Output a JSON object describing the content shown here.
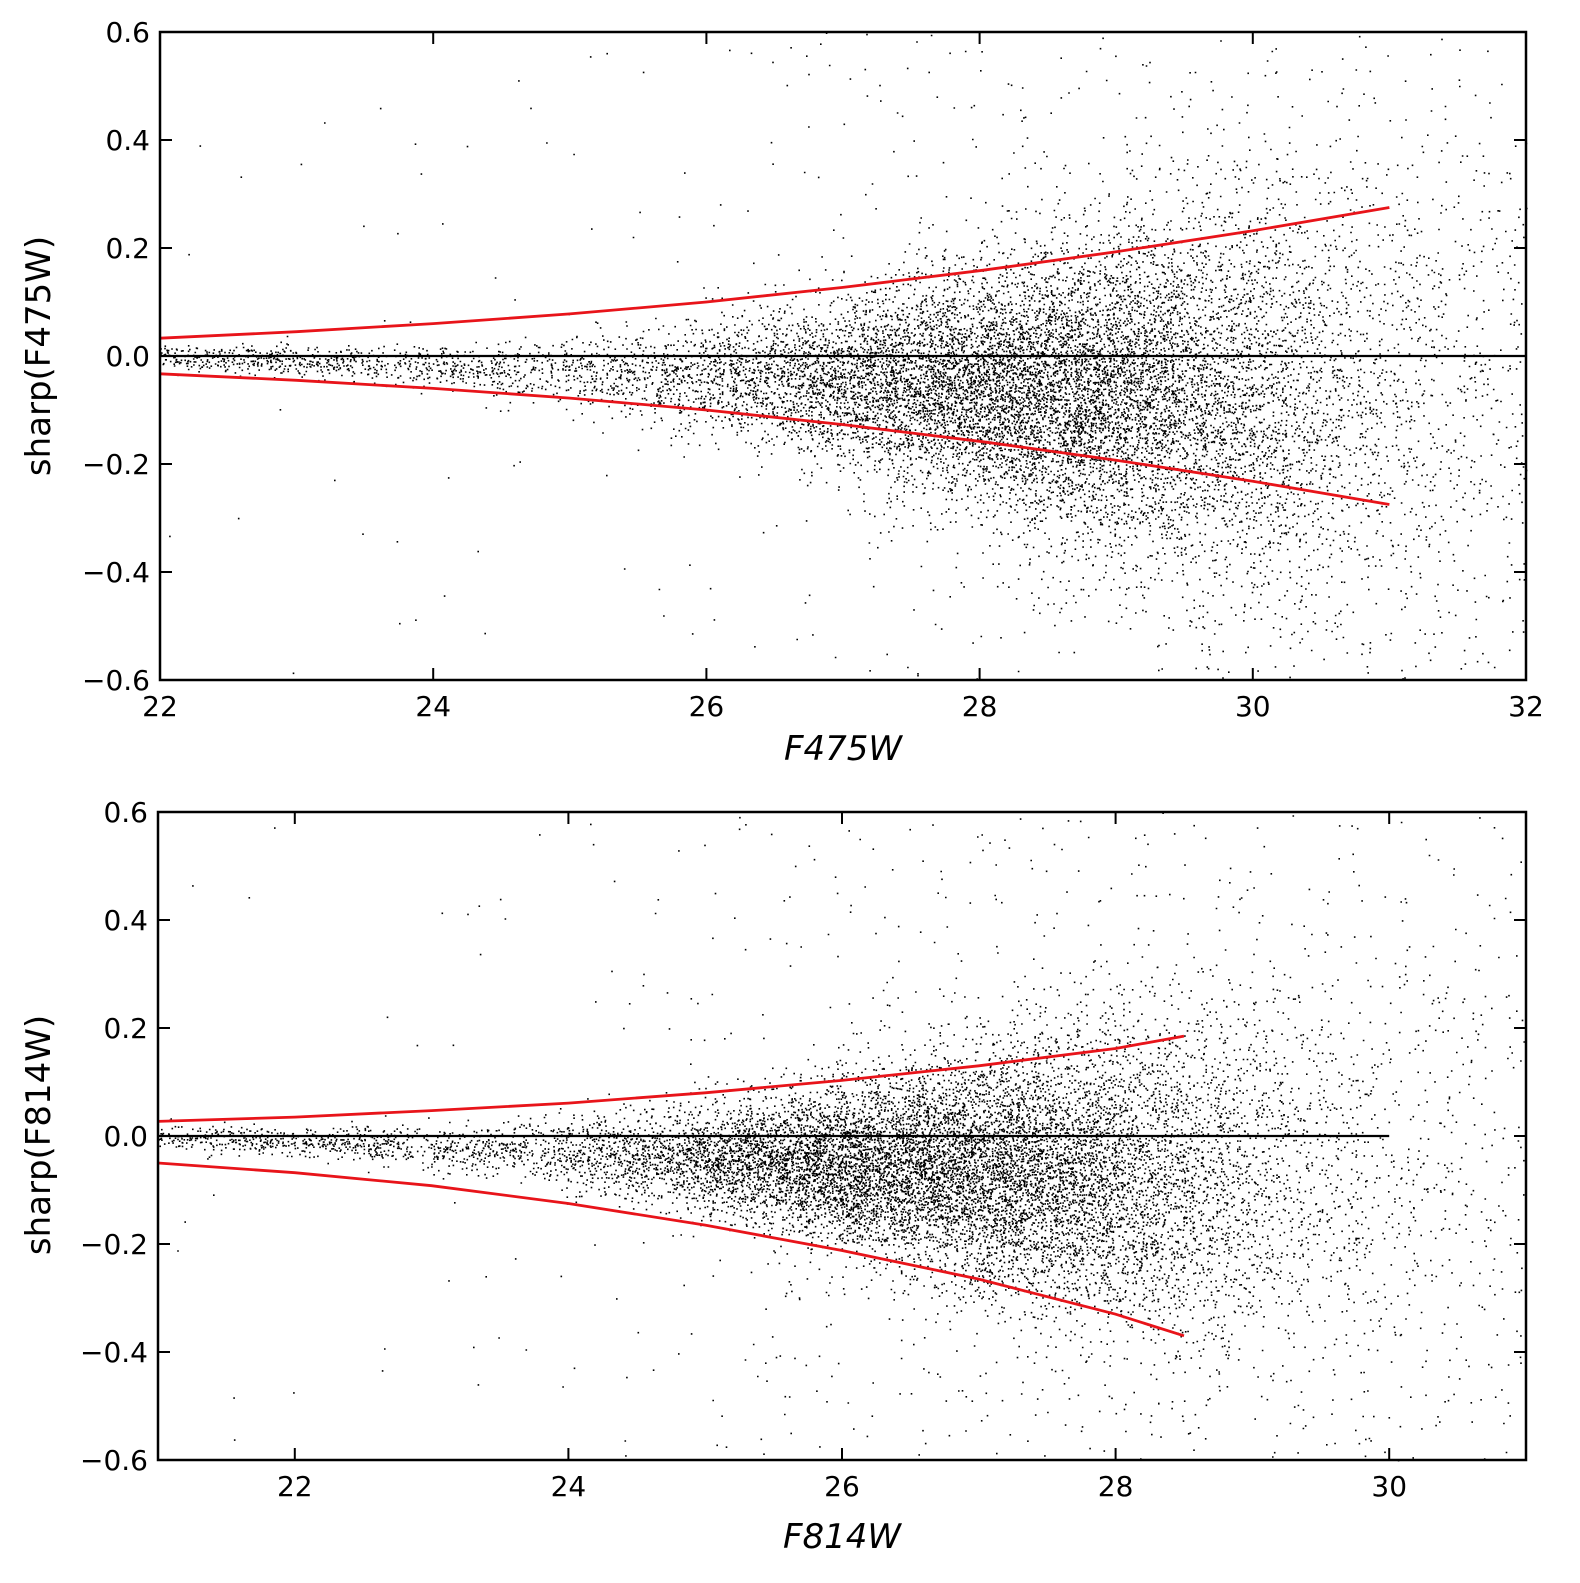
{
  "chart_data": [
    {
      "type": "scatter",
      "panel": "top",
      "xlabel": "F475W",
      "ylabel": "sharp(F475W)",
      "xlim": [
        22,
        32
      ],
      "ylim": [
        -0.6,
        0.6
      ],
      "xticks": [
        22,
        24,
        26,
        28,
        30,
        32
      ],
      "yticks": [
        -0.6,
        -0.4,
        -0.2,
        0.0,
        0.2,
        0.4,
        0.6
      ],
      "xtick_labels": [
        "22",
        "24",
        "26",
        "28",
        "30",
        "32"
      ],
      "ytick_labels": [
        "−0.6",
        "−0.4",
        "−0.2",
        "0.0",
        "0.2",
        "0.4",
        "0.6"
      ],
      "grid": false,
      "colors": {
        "points": "#000000",
        "envelope": "#e8141a",
        "zero_line": "#000000"
      },
      "zero_line": {
        "x": [
          22,
          32
        ],
        "y": 0.0
      },
      "distribution": {
        "center_mag": 28.6,
        "center_sharp": -0.07,
        "bright_limit": 22,
        "faint_limit": 32
      },
      "series": [
        {
          "name": "",
          "role": "upper_envelope",
          "x": [
            22,
            23,
            24,
            25,
            26,
            27,
            28,
            29,
            30,
            31
          ],
          "y": [
            0.033,
            0.045,
            0.06,
            0.078,
            0.1,
            0.127,
            0.158,
            0.193,
            0.232,
            0.275
          ]
        },
        {
          "name": "",
          "role": "lower_envelope",
          "x": [
            22,
            23,
            24,
            25,
            26,
            27,
            28,
            29,
            30,
            31
          ],
          "y": [
            -0.033,
            -0.045,
            -0.06,
            -0.078,
            -0.1,
            -0.127,
            -0.158,
            -0.193,
            -0.232,
            -0.275
          ]
        }
      ]
    },
    {
      "type": "scatter",
      "panel": "bottom",
      "xlabel": "F814W",
      "ylabel": "sharp(F814W)",
      "xlim": [
        21,
        31
      ],
      "ylim": [
        -0.6,
        0.6
      ],
      "xticks": [
        22,
        24,
        26,
        28,
        30
      ],
      "yticks": [
        -0.6,
        -0.4,
        -0.2,
        0.0,
        0.2,
        0.4,
        0.6
      ],
      "xtick_labels": [
        "22",
        "24",
        "26",
        "28",
        "30"
      ],
      "ytick_labels": [
        "−0.6",
        "−0.4",
        "−0.2",
        "0.0",
        "0.2",
        "0.4",
        "0.6"
      ],
      "grid": false,
      "colors": {
        "points": "#000000",
        "envelope": "#e8141a",
        "zero_line": "#000000"
      },
      "zero_line": {
        "x": [
          21,
          30
        ],
        "y": 0.0
      },
      "distribution": {
        "center_mag": 26.9,
        "center_sharp": -0.08,
        "bright_limit": 21,
        "faint_limit": 31
      },
      "series": [
        {
          "name": "",
          "role": "upper_envelope",
          "x": [
            21,
            22,
            23,
            24,
            25,
            26,
            27,
            28,
            28.5
          ],
          "y": [
            0.027,
            0.035,
            0.047,
            0.061,
            0.08,
            0.103,
            0.13,
            0.162,
            0.185
          ]
        },
        {
          "name": "",
          "role": "lower_envelope",
          "x": [
            21,
            22,
            23,
            24,
            25,
            26,
            27,
            28,
            28.5
          ],
          "y": [
            -0.05,
            -0.068,
            -0.092,
            -0.125,
            -0.165,
            -0.212,
            -0.265,
            -0.33,
            -0.37
          ]
        }
      ]
    }
  ]
}
